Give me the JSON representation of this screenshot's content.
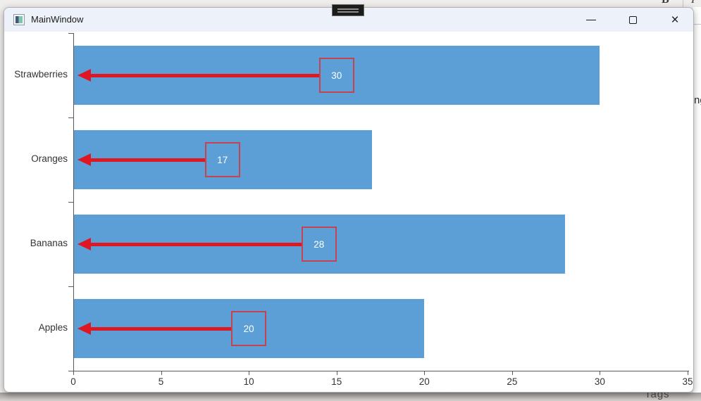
{
  "window": {
    "title": "MainWindow",
    "controls": {
      "close_glyph": "×"
    }
  },
  "background": {
    "top_right_letters": [
      "B",
      "I"
    ],
    "right_edge_text": "ng",
    "bottom_right_text": "Tags"
  },
  "chart_data": {
    "type": "bar",
    "orientation": "horizontal",
    "title": "",
    "categories": [
      "Strawberries",
      "Oranges",
      "Bananas",
      "Apples"
    ],
    "values": [
      30,
      17,
      28,
      20
    ],
    "value_labels": [
      "30",
      "17",
      "28",
      "20"
    ],
    "x_ticks": [
      0,
      5,
      10,
      15,
      20,
      25,
      30,
      35
    ],
    "xlim": [
      0,
      35
    ],
    "grid": false,
    "annotation_style": "red left-pointing arrow from boxed value label at bar midpoint toward axis",
    "colors": {
      "bar": "#5B9FD6",
      "arrow": "#DE1723",
      "box_border": "#C4434F",
      "box_text": "#FFFFFF",
      "axis": "#5a5a5a",
      "tick_label": "#333333"
    }
  }
}
